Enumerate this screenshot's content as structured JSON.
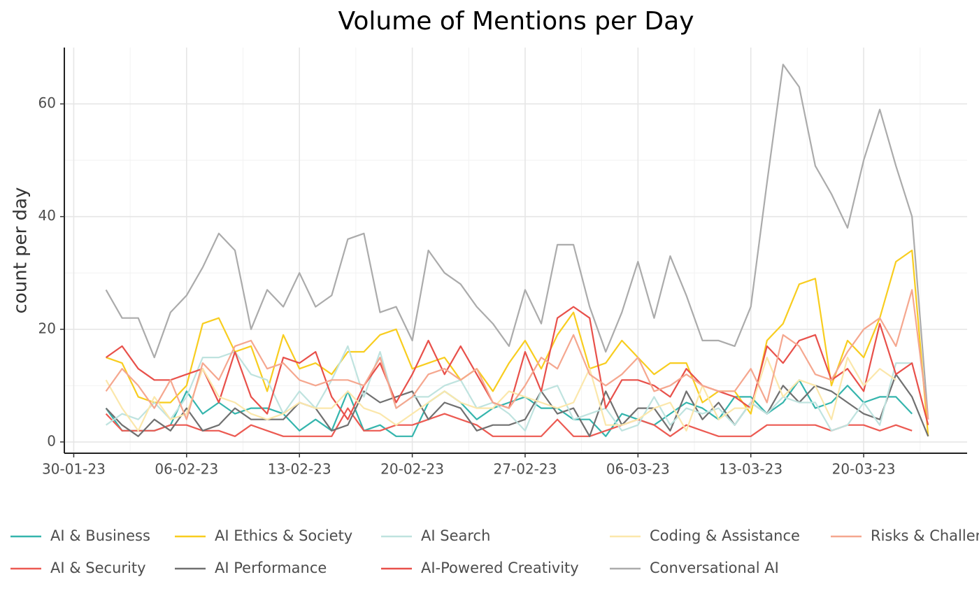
{
  "chart_data": {
    "type": "line",
    "title": "Volume of Mentions per Day",
    "ylabel": "count per day",
    "x": [
      "2023-02-01",
      "2023-02-02",
      "2023-02-03",
      "2023-02-04",
      "2023-02-05",
      "2023-02-06",
      "2023-02-07",
      "2023-02-08",
      "2023-02-09",
      "2023-02-10",
      "2023-02-11",
      "2023-02-12",
      "2023-02-13",
      "2023-02-14",
      "2023-02-15",
      "2023-02-16",
      "2023-02-17",
      "2023-02-18",
      "2023-02-19",
      "2023-02-20",
      "2023-02-21",
      "2023-02-22",
      "2023-02-23",
      "2023-02-24",
      "2023-02-25",
      "2023-02-26",
      "2023-02-27",
      "2023-02-28",
      "2023-03-01",
      "2023-03-02",
      "2023-03-03",
      "2023-03-04",
      "2023-03-05",
      "2023-03-06",
      "2023-03-07",
      "2023-03-08",
      "2023-03-09",
      "2023-03-10",
      "2023-03-11",
      "2023-03-12",
      "2023-03-13",
      "2023-03-14",
      "2023-03-15",
      "2023-03-16",
      "2023-03-17",
      "2023-03-18",
      "2023-03-19",
      "2023-03-20",
      "2023-03-21",
      "2023-03-22",
      "2023-03-23",
      "2023-03-24"
    ],
    "xlim": [
      "2023-01-29T10:00Z",
      "2023-03-26T10:00Z"
    ],
    "xticks": [
      {
        "value": "2023-01-30",
        "label": "30-01-23"
      },
      {
        "value": "2023-02-06",
        "label": "06-02-23"
      },
      {
        "value": "2023-02-13",
        "label": "13-02-23"
      },
      {
        "value": "2023-02-20",
        "label": "20-02-23"
      },
      {
        "value": "2023-02-27",
        "label": "27-02-23"
      },
      {
        "value": "2023-03-06",
        "label": "06-03-23"
      },
      {
        "value": "2023-03-13",
        "label": "13-03-23"
      },
      {
        "value": "2023-03-20",
        "label": "20-03-23"
      }
    ],
    "ylim": [
      -2,
      70
    ],
    "yticks": [
      0,
      20,
      40,
      60
    ],
    "grid": true,
    "legend": "bottom",
    "series": [
      {
        "name": "AI & Business",
        "color": "#35b5ad",
        "values": [
          6,
          2,
          2,
          2,
          3,
          9,
          5,
          7,
          5,
          6,
          6,
          5,
          2,
          4,
          2,
          9,
          2,
          3,
          1,
          1,
          7,
          9,
          7,
          4,
          6,
          7,
          8,
          6,
          6,
          4,
          4,
          1,
          5,
          4,
          3,
          5,
          7,
          6,
          4,
          8,
          8,
          5,
          7,
          11,
          6,
          7,
          10,
          7,
          8,
          8,
          5,
          null
        ]
      },
      {
        "name": "AI & Security",
        "color": "#ec5a52",
        "values": [
          5,
          2,
          2,
          2,
          3,
          3,
          2,
          2,
          1,
          3,
          2,
          1,
          1,
          1,
          1,
          6,
          2,
          2,
          3,
          3,
          4,
          5,
          4,
          3,
          1,
          1,
          1,
          1,
          4,
          1,
          1,
          2,
          3,
          4,
          3,
          1,
          3,
          2,
          1,
          1,
          1,
          3,
          3,
          3,
          3,
          2,
          3,
          3,
          2,
          3,
          2,
          null
        ]
      },
      {
        "name": "AI Ethics & Society",
        "color": "#f8cd1f",
        "values": [
          15,
          14,
          8,
          7,
          7,
          10,
          21,
          22,
          16,
          17,
          9,
          19,
          13,
          14,
          12,
          16,
          16,
          19,
          20,
          13,
          14,
          15,
          11,
          13,
          9,
          14,
          18,
          13,
          19,
          23,
          13,
          14,
          18,
          15,
          12,
          14,
          14,
          7,
          9,
          9,
          5,
          18,
          21,
          28,
          29,
          10,
          18,
          15,
          22,
          32,
          34,
          1
        ]
      },
      {
        "name": "AI Performance",
        "color": "#707070",
        "values": [
          6,
          3,
          1,
          4,
          2,
          6,
          2,
          3,
          6,
          4,
          4,
          4,
          7,
          6,
          2,
          3,
          9,
          7,
          8,
          9,
          4,
          7,
          6,
          2,
          3,
          3,
          4,
          9,
          5,
          6,
          1,
          9,
          3,
          6,
          6,
          2,
          9,
          4,
          7,
          3,
          7,
          5,
          10,
          7,
          10,
          9,
          7,
          5,
          4,
          12,
          8,
          1
        ]
      },
      {
        "name": "AI Search",
        "color": "#bfe3df",
        "values": [
          3,
          5,
          4,
          7,
          4,
          8,
          15,
          15,
          16,
          12,
          11,
          5,
          9,
          6,
          11,
          17,
          8,
          16,
          6,
          8,
          8,
          10,
          11,
          6,
          7,
          5,
          2,
          9,
          10,
          4,
          5,
          6,
          2,
          3,
          8,
          3,
          6,
          5,
          6,
          3,
          7,
          5,
          8,
          7,
          7,
          2,
          3,
          7,
          3,
          14,
          14,
          null
        ]
      },
      {
        "name": "AI-Powered Creativity",
        "color": "#e8504a",
        "values": [
          15,
          17,
          13,
          11,
          11,
          12,
          13,
          7,
          16,
          8,
          5,
          15,
          14,
          16,
          8,
          4,
          10,
          14,
          7,
          12,
          18,
          12,
          17,
          12,
          7,
          6,
          16,
          9,
          22,
          24,
          22,
          6,
          11,
          11,
          10,
          8,
          13,
          10,
          9,
          8,
          6,
          17,
          14,
          18,
          19,
          11,
          13,
          9,
          21,
          12,
          14,
          3
        ]
      },
      {
        "name": "Coding & Assistance",
        "color": "#fbe7ab",
        "values": [
          11,
          6,
          2,
          8,
          4,
          5,
          13,
          8,
          7,
          5,
          4,
          5,
          7,
          6,
          6,
          9,
          6,
          5,
          3,
          5,
          7,
          9,
          7,
          6,
          6,
          9,
          8,
          7,
          6,
          7,
          13,
          3,
          3,
          4,
          6,
          7,
          2,
          10,
          4,
          6,
          6,
          15,
          8,
          11,
          10,
          4,
          15,
          10,
          13,
          11,
          null,
          null
        ]
      },
      {
        "name": "Conversational AI",
        "color": "#ababab",
        "values": [
          27,
          22,
          22,
          15,
          23,
          26,
          31,
          37,
          34,
          20,
          27,
          24,
          30,
          24,
          26,
          36,
          37,
          23,
          24,
          18,
          34,
          30,
          28,
          24,
          21,
          17,
          27,
          21,
          35,
          35,
          24,
          16,
          23,
          32,
          22,
          33,
          26,
          18,
          18,
          17,
          24,
          46,
          67,
          63,
          49,
          44,
          38,
          50,
          59,
          49,
          40,
          4
        ]
      },
      {
        "name": "Risks & Challenges",
        "color": "#f5a78f",
        "values": [
          9,
          13,
          10,
          6,
          11,
          4,
          14,
          11,
          17,
          18,
          13,
          14,
          11,
          10,
          11,
          11,
          10,
          15,
          6,
          8,
          12,
          13,
          11,
          13,
          7,
          6,
          10,
          15,
          13,
          19,
          12,
          10,
          12,
          15,
          9,
          10,
          12,
          10,
          9,
          9,
          13,
          7,
          19,
          17,
          12,
          11,
          16,
          20,
          22,
          17,
          27,
          4
        ]
      }
    ]
  }
}
